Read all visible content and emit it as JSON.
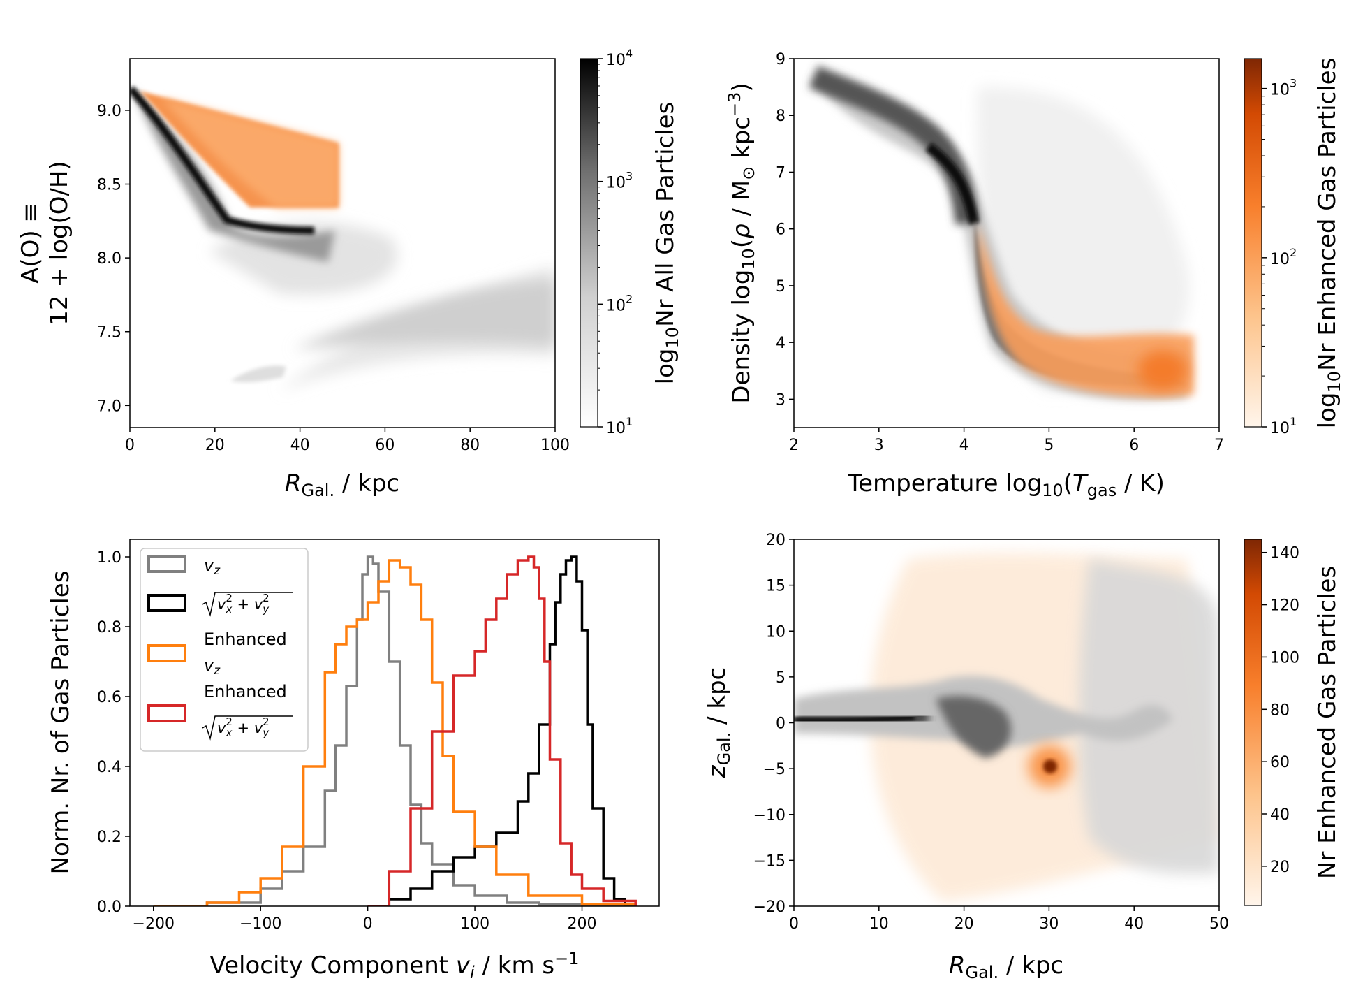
{
  "chart_data": [
    {
      "type": "heatmap",
      "panel": "top-left",
      "xlabel_main": "R",
      "xlabel_sub": "Gal.",
      "xlabel_rest": " / kpc",
      "ylabel_line1": "A(O) ≡",
      "ylabel_line2": "12 + log(O/H)",
      "xlim": [
        0,
        100
      ],
      "ylim": [
        6.85,
        9.35
      ],
      "xticks": [
        "0",
        "20",
        "40",
        "60",
        "80",
        "100"
      ],
      "yticks": [
        "7.0",
        "7.5",
        "8.0",
        "8.5",
        "9.0"
      ],
      "colorbar": {
        "label_pre": "log",
        "label_sub": "10",
        "label_post": "Nr All Gas Particles",
        "scale": "log",
        "range": [
          10,
          10000
        ],
        "tick_exponents": [
          "1",
          "2",
          "3",
          "4"
        ],
        "cmap": "greys"
      },
      "overlay": "enhanced gas particles (oranges)"
    },
    {
      "type": "heatmap",
      "panel": "top-right",
      "xlabel_pre": "Temperature log",
      "xlabel_sub": "10",
      "xlabel_mid": "(",
      "xlabel_T": "T",
      "xlabel_Tsub": "gas",
      "xlabel_post": " / K)",
      "ylabel_pre": "Density log",
      "ylabel_sub": "10",
      "ylabel_mid": "(",
      "ylabel_rho": "ρ",
      "ylabel_post": " / M",
      "ylabel_sun": "⊙",
      "ylabel_unit": " kpc",
      "ylabel_exp": "−3",
      "ylabel_close": ")",
      "xlim": [
        2,
        7
      ],
      "ylim": [
        2.5,
        9
      ],
      "xticks": [
        "2",
        "3",
        "4",
        "5",
        "6",
        "7"
      ],
      "yticks": [
        "3",
        "4",
        "5",
        "6",
        "7",
        "8",
        "9"
      ],
      "colorbar": {
        "label_pre": "log",
        "label_sub": "10",
        "label_post": "Nr Enhanced Gas Particles",
        "scale": "log",
        "range": [
          10,
          1500
        ],
        "tick_exponents": [
          "1",
          "2",
          "3"
        ],
        "cmap": "oranges"
      }
    },
    {
      "type": "line",
      "panel": "bottom-left",
      "xlabel": "Velocity Component ",
      "xlabel_v": "v",
      "xlabel_vsub": "i",
      "xlabel_unit": " / km s",
      "xlabel_exp": "−1",
      "ylabel": "Norm. Nr. of  Gas Particles",
      "xlim": [
        -222,
        272
      ],
      "ylim": [
        0,
        1.05
      ],
      "xticks": [
        "−200",
        "−100",
        "0",
        "100",
        "200"
      ],
      "yticks": [
        "0.0",
        "0.2",
        "0.4",
        "0.6",
        "0.8",
        "1.0"
      ],
      "legend_position": "top-left",
      "series": [
        {
          "name": "v_z",
          "color": "#808080",
          "x": [
            -200,
            -150,
            -100,
            -80,
            -60,
            -40,
            -30,
            -20,
            -10,
            -5,
            0,
            5,
            10,
            20,
            30,
            40,
            50,
            60,
            80,
            100,
            130,
            160,
            200,
            250
          ],
          "y": [
            0,
            0.01,
            0.05,
            0.1,
            0.17,
            0.33,
            0.46,
            0.63,
            0.82,
            0.95,
            1.0,
            0.98,
            0.9,
            0.7,
            0.46,
            0.29,
            0.18,
            0.12,
            0.06,
            0.03,
            0.01,
            0.005,
            0.002,
            0
          ]
        },
        {
          "name": "sqrt(v_x^2+v_y^2)",
          "color": "#000000",
          "x": [
            0,
            20,
            40,
            60,
            80,
            100,
            120,
            140,
            150,
            160,
            170,
            175,
            180,
            185,
            190,
            195,
            200,
            205,
            210,
            220,
            230,
            240,
            250
          ],
          "y": [
            0,
            0.02,
            0.05,
            0.1,
            0.14,
            0.17,
            0.21,
            0.3,
            0.38,
            0.52,
            0.75,
            0.87,
            0.95,
            0.99,
            1.0,
            0.93,
            0.79,
            0.52,
            0.28,
            0.08,
            0.02,
            0.005,
            0
          ]
        },
        {
          "name": "Enhanced v_z",
          "color": "#ff7f0e",
          "x": [
            -200,
            -150,
            -120,
            -100,
            -80,
            -60,
            -40,
            -30,
            -20,
            -10,
            0,
            10,
            20,
            30,
            40,
            50,
            60,
            70,
            80,
            100,
            120,
            150,
            200,
            250
          ],
          "y": [
            0,
            0.01,
            0.04,
            0.08,
            0.17,
            0.4,
            0.67,
            0.75,
            0.8,
            0.82,
            0.87,
            0.93,
            0.99,
            0.97,
            0.92,
            0.82,
            0.64,
            0.43,
            0.27,
            0.17,
            0.09,
            0.03,
            0.005,
            0
          ]
        },
        {
          "name": "Enhanced sqrt(v_x^2+v_y^2)",
          "color": "#d62728",
          "x": [
            0,
            20,
            40,
            60,
            80,
            100,
            110,
            120,
            130,
            140,
            150,
            155,
            160,
            165,
            170,
            180,
            190,
            200,
            220,
            250
          ],
          "y": [
            0,
            0.1,
            0.28,
            0.5,
            0.66,
            0.73,
            0.82,
            0.88,
            0.95,
            0.99,
            1.0,
            0.97,
            0.88,
            0.7,
            0.42,
            0.18,
            0.09,
            0.05,
            0.015,
            0
          ]
        }
      ],
      "legend_labels": {
        "vz": "v",
        "vz_sub": "z",
        "vxy_x": "x",
        "vxy_y": "y",
        "vxy_exp": "2",
        "enhanced": "Enhanced"
      }
    },
    {
      "type": "heatmap",
      "panel": "bottom-right",
      "xlabel_main": "R",
      "xlabel_sub": "Gal.",
      "xlabel_rest": " / kpc",
      "ylabel_main": "z",
      "ylabel_sub": "Gal.",
      "ylabel_rest": " / kpc",
      "xlim": [
        0,
        50
      ],
      "ylim": [
        -20,
        20
      ],
      "xticks": [
        "0",
        "10",
        "20",
        "30",
        "40",
        "50"
      ],
      "yticks": [
        "−20",
        "−15",
        "−10",
        "−5",
        "0",
        "5",
        "10",
        "15",
        "20"
      ],
      "colorbar": {
        "label": "Nr Enhanced Gas Particles",
        "scale": "linear",
        "range": [
          5,
          145
        ],
        "ticks": [
          "20",
          "40",
          "60",
          "80",
          "100",
          "120",
          "140"
        ],
        "cmap": "oranges"
      }
    }
  ]
}
